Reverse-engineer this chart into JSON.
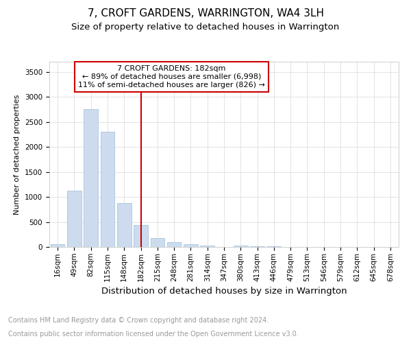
{
  "title": "7, CROFT GARDENS, WARRINGTON, WA4 3LH",
  "subtitle": "Size of property relative to detached houses in Warrington",
  "xlabel": "Distribution of detached houses by size in Warrington",
  "ylabel": "Number of detached properties",
  "categories": [
    "16sqm",
    "49sqm",
    "82sqm",
    "115sqm",
    "148sqm",
    "182sqm",
    "215sqm",
    "248sqm",
    "281sqm",
    "314sqm",
    "347sqm",
    "380sqm",
    "413sqm",
    "446sqm",
    "479sqm",
    "513sqm",
    "546sqm",
    "579sqm",
    "612sqm",
    "645sqm",
    "678sqm"
  ],
  "values": [
    50,
    1120,
    2750,
    2300,
    880,
    440,
    185,
    100,
    50,
    30,
    5,
    30,
    20,
    10,
    5,
    3,
    2,
    1,
    1,
    0,
    0
  ],
  "bar_color": "#ccdcee",
  "bar_edge_color": "#aac4de",
  "vline_x": 5,
  "vline_color": "#cc0000",
  "annotation_box_color": "#cc0000",
  "annotation_text": "7 CROFT GARDENS: 182sqm\n← 89% of detached houses are smaller (6,998)\n11% of semi-detached houses are larger (826) →",
  "ylim": [
    0,
    3700
  ],
  "yticks": [
    0,
    500,
    1000,
    1500,
    2000,
    2500,
    3000,
    3500
  ],
  "footer_line1": "Contains HM Land Registry data © Crown copyright and database right 2024.",
  "footer_line2": "Contains public sector information licensed under the Open Government Licence v3.0.",
  "bg_color": "#ffffff",
  "grid_color": "#d8d8d8",
  "title_fontsize": 11,
  "subtitle_fontsize": 9.5,
  "xlabel_fontsize": 9.5,
  "ylabel_fontsize": 8,
  "tick_fontsize": 7.5,
  "footer_fontsize": 7,
  "annotation_fontsize": 8
}
